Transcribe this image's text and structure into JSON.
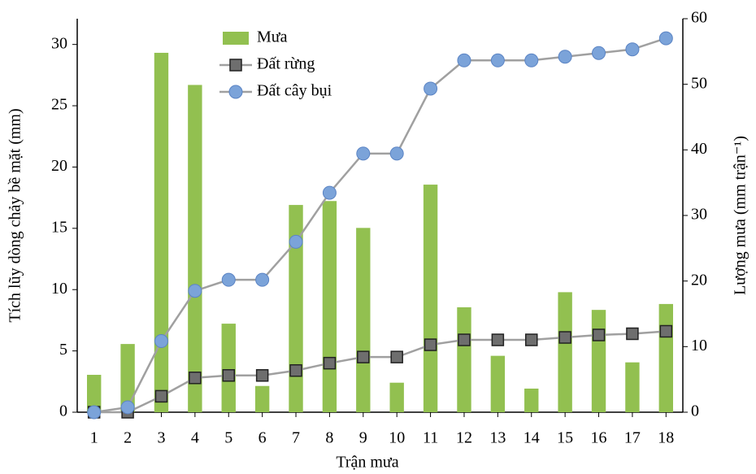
{
  "chart_data": {
    "type": "combo",
    "x_label": "Trận mưa",
    "y_label": "Tích lũy dòng chảy bề mặt (mm)",
    "y2_label": "Lượng mưa (mm trận⁻¹)",
    "categories": [
      "1",
      "2",
      "3",
      "4",
      "5",
      "6",
      "7",
      "8",
      "9",
      "10",
      "11",
      "12",
      "13",
      "14",
      "15",
      "16",
      "17",
      "18"
    ],
    "ylim": [
      0,
      32.1
    ],
    "yticks": [
      0,
      5,
      10,
      15,
      20,
      25,
      30
    ],
    "y2lim": [
      0,
      60
    ],
    "y2ticks": [
      0,
      10,
      20,
      30,
      40,
      50,
      60
    ],
    "grid": false,
    "series": [
      {
        "name": "Mưa",
        "type": "bar",
        "axis": "y2",
        "color": "#92c050",
        "values": [
          5.7,
          10.4,
          54.8,
          49.9,
          13.5,
          4.0,
          31.6,
          32.2,
          28.1,
          4.5,
          34.7,
          16.0,
          8.6,
          3.6,
          18.3,
          15.6,
          7.6,
          16.5
        ]
      },
      {
        "name": "Đất rừng",
        "type": "line",
        "marker": "square",
        "color": "#6e6e6e",
        "values": [
          0,
          0,
          1.3,
          2.8,
          3.0,
          3.0,
          3.4,
          4.0,
          4.5,
          4.5,
          5.5,
          5.9,
          5.9,
          5.9,
          6.1,
          6.3,
          6.4,
          6.6
        ]
      },
      {
        "name": "Đất cây bụi",
        "type": "line",
        "marker": "circle",
        "color": "#7ba3d9",
        "values": [
          0,
          0.4,
          5.8,
          9.9,
          10.8,
          10.8,
          13.9,
          17.9,
          21.1,
          21.1,
          26.4,
          28.7,
          28.7,
          28.7,
          29.0,
          29.3,
          29.6,
          30.5
        ]
      }
    ]
  }
}
